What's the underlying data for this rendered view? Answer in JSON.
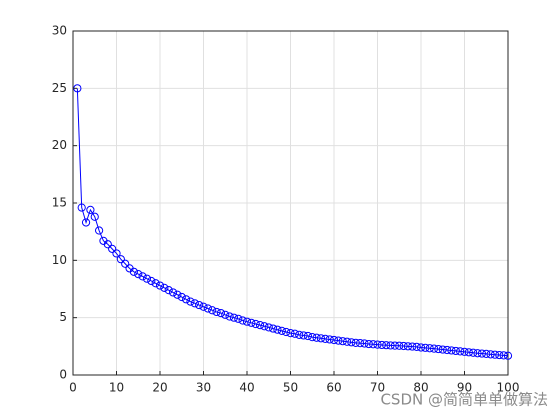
{
  "chart_data": {
    "type": "line",
    "x": [
      1,
      2,
      3,
      4,
      5,
      6,
      7,
      8,
      9,
      10,
      11,
      12,
      13,
      14,
      15,
      16,
      17,
      18,
      19,
      20,
      21,
      22,
      23,
      24,
      25,
      26,
      27,
      28,
      29,
      30,
      31,
      32,
      33,
      34,
      35,
      36,
      37,
      38,
      39,
      40,
      41,
      42,
      43,
      44,
      45,
      46,
      47,
      48,
      49,
      50,
      51,
      52,
      53,
      54,
      55,
      56,
      57,
      58,
      59,
      60,
      61,
      62,
      63,
      64,
      65,
      66,
      67,
      68,
      69,
      70,
      71,
      72,
      73,
      74,
      75,
      76,
      77,
      78,
      79,
      80,
      81,
      82,
      83,
      84,
      85,
      86,
      87,
      88,
      89,
      90,
      91,
      92,
      93,
      94,
      95,
      96,
      97,
      98,
      99,
      100
    ],
    "series": [
      {
        "color": "#0000ff",
        "marker": "circle",
        "values": [
          25,
          14.6,
          13.3,
          14.4,
          13.8,
          12.6,
          11.7,
          11.4,
          11.0,
          10.6,
          10.1,
          9.7,
          9.3,
          9.0,
          8.8,
          8.6,
          8.4,
          8.2,
          8.0,
          7.8,
          7.6,
          7.4,
          7.2,
          7.0,
          6.8,
          6.6,
          6.4,
          6.25,
          6.1,
          5.95,
          5.8,
          5.65,
          5.5,
          5.4,
          5.25,
          5.1,
          5.0,
          4.9,
          4.75,
          4.65,
          4.55,
          4.45,
          4.35,
          4.25,
          4.15,
          4.05,
          3.95,
          3.85,
          3.75,
          3.65,
          3.6,
          3.5,
          3.45,
          3.4,
          3.3,
          3.25,
          3.2,
          3.15,
          3.1,
          3.05,
          3.0,
          2.95,
          2.9,
          2.85,
          2.8,
          2.78,
          2.75,
          2.7,
          2.68,
          2.65,
          2.62,
          2.6,
          2.58,
          2.56,
          2.55,
          2.53,
          2.5,
          2.48,
          2.45,
          2.4,
          2.37,
          2.33,
          2.3,
          2.26,
          2.22,
          2.18,
          2.14,
          2.1,
          2.06,
          2.02,
          1.98,
          1.94,
          1.9,
          1.87,
          1.84,
          1.8,
          1.77,
          1.74,
          1.71,
          1.68
        ]
      }
    ],
    "xlim": [
      0,
      100
    ],
    "xticks": [
      0,
      10,
      20,
      30,
      40,
      50,
      60,
      70,
      80,
      90,
      100
    ],
    "ylim": [
      0,
      30
    ],
    "yticks": [
      0,
      5,
      10,
      15,
      20,
      25,
      30
    ],
    "grid": true
  },
  "watermark": "CSDN @简简单单做算法"
}
